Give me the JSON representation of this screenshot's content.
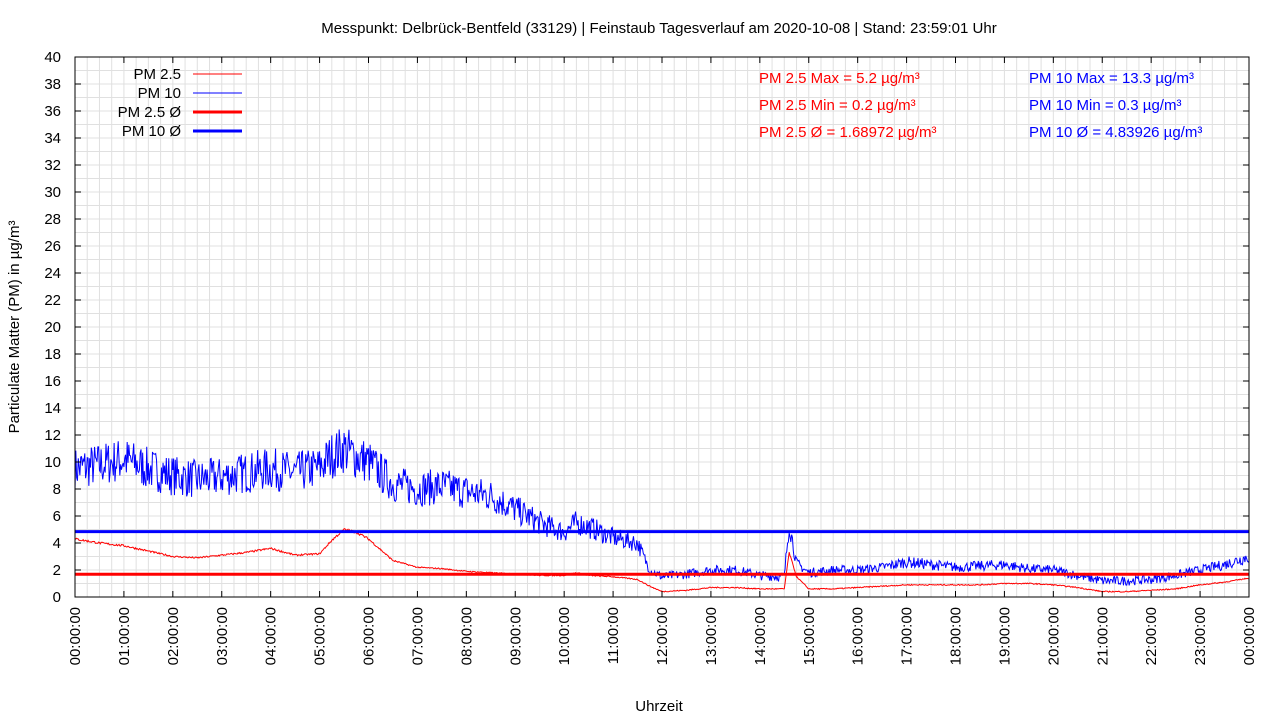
{
  "chart_data": {
    "type": "line",
    "title": "Messpunkt: Delbrück-Bentfeld (33129) | Feinstaub Tagesverlauf am 2020-10-08 | Stand: 23:59:01 Uhr",
    "xlabel": "Uhrzeit",
    "ylabel": "Particulate Matter (PM) in µg/m³",
    "xlim": [
      "00:00:00",
      "00:00:00"
    ],
    "ylim": [
      0,
      40
    ],
    "grid": true,
    "legend_position": "top-left",
    "x_tick_labels": [
      "00:00:00",
      "01:00:00",
      "02:00:00",
      "03:00:00",
      "04:00:00",
      "05:00:00",
      "06:00:00",
      "07:00:00",
      "08:00:00",
      "09:00:00",
      "10:00:00",
      "11:00:00",
      "12:00:00",
      "13:00:00",
      "14:00:00",
      "15:00:00",
      "16:00:00",
      "17:00:00",
      "18:00:00",
      "19:00:00",
      "20:00:00",
      "21:00:00",
      "22:00:00",
      "23:00:00",
      "00:00:00"
    ],
    "y_tick_labels": [
      "0",
      "2",
      "4",
      "6",
      "8",
      "10",
      "12",
      "14",
      "16",
      "18",
      "20",
      "22",
      "24",
      "26",
      "28",
      "30",
      "32",
      "34",
      "36",
      "38",
      "40"
    ],
    "x_hours": [
      0,
      0.5,
      1,
      1.5,
      2,
      2.5,
      3,
      3.5,
      4,
      4.5,
      5,
      5.25,
      5.5,
      5.75,
      6,
      6.25,
      6.5,
      7,
      7.5,
      8,
      8.5,
      9,
      9.5,
      10,
      10.25,
      10.5,
      11,
      11.25,
      11.5,
      11.75,
      12,
      12.5,
      13,
      13.5,
      14,
      14.5,
      14.6,
      14.75,
      15,
      15.5,
      16,
      16.5,
      17,
      17.5,
      18,
      18.5,
      19,
      19.5,
      20,
      20.5,
      21,
      21.5,
      22,
      22.5,
      23,
      23.5,
      24
    ],
    "series": [
      {
        "name": "PM 2.5",
        "color": "#ff0000",
        "values": [
          4.3,
          4.0,
          3.8,
          3.4,
          3.0,
          2.9,
          3.1,
          3.3,
          3.6,
          3.1,
          3.2,
          4.2,
          5.0,
          4.8,
          4.3,
          3.5,
          2.7,
          2.2,
          2.1,
          1.9,
          1.8,
          1.7,
          1.6,
          1.6,
          1.8,
          1.6,
          1.5,
          1.4,
          1.3,
          0.8,
          0.4,
          0.5,
          0.7,
          0.7,
          0.6,
          0.6,
          3.3,
          1.5,
          0.6,
          0.6,
          0.7,
          0.8,
          0.9,
          0.9,
          0.9,
          0.9,
          1.0,
          1.0,
          0.9,
          0.7,
          0.4,
          0.4,
          0.5,
          0.6,
          0.9,
          1.1,
          1.4
        ]
      },
      {
        "name": "PM 10",
        "color": "#0000ff",
        "values": [
          9.5,
          9.8,
          10.2,
          9.5,
          9.0,
          8.7,
          8.9,
          9.2,
          9.5,
          9.2,
          9.6,
          10.5,
          11.0,
          10.4,
          10.0,
          9.2,
          8.4,
          8.0,
          8.2,
          7.8,
          7.5,
          6.5,
          5.5,
          4.8,
          5.5,
          5.2,
          4.4,
          4.2,
          4.0,
          2.0,
          1.5,
          1.7,
          2.0,
          2.0,
          1.6,
          1.5,
          5.5,
          2.5,
          1.8,
          2.0,
          2.0,
          2.2,
          2.6,
          2.4,
          2.2,
          2.3,
          2.4,
          2.1,
          2.0,
          1.6,
          1.2,
          1.2,
          1.3,
          1.6,
          2.0,
          2.4,
          3.0
        ]
      },
      {
        "name": "PM 2.5 Ø",
        "color": "#ff0000",
        "constant": 1.68972
      },
      {
        "name": "PM 10 Ø",
        "color": "#0000ff",
        "constant": 4.83926
      }
    ],
    "stats": {
      "pm25": [
        "PM 2.5 Max = 5.2 µg/m³",
        "PM 2.5 Min = 0.2 µg/m³",
        "PM 2.5 Ø = 1.68972 µg/m³"
      ],
      "pm10": [
        "PM 10 Max = 13.3 µg/m³",
        "PM 10 Min = 0.3 µg/m³",
        "PM 10 Ø = 4.83926 µg/m³"
      ]
    }
  }
}
